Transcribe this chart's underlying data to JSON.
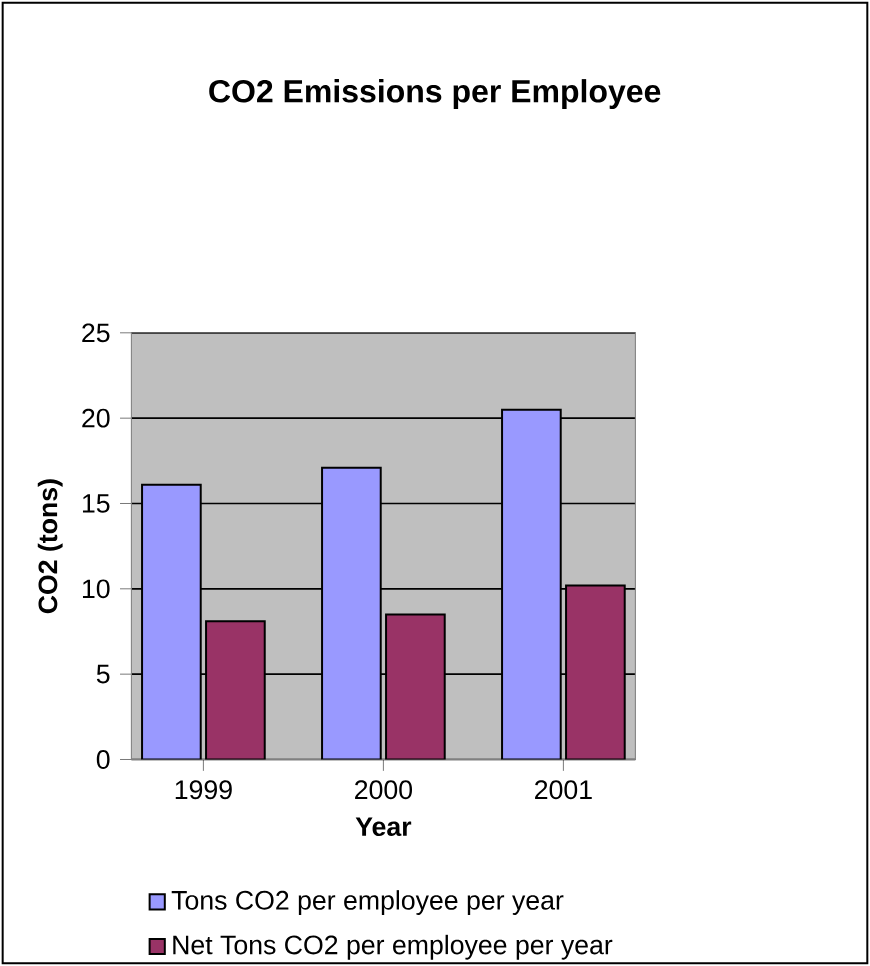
{
  "chart_data": {
    "type": "bar",
    "title": "CO2 Emissions per Employee",
    "xlabel": "Year",
    "ylabel": "CO2 (tons)",
    "categories": [
      "1999",
      "2000",
      "2001"
    ],
    "series": [
      {
        "name": "Tons CO2 per employee per year",
        "color": "#9999ff",
        "values": [
          16.1,
          17.1,
          20.5
        ]
      },
      {
        "name": "Net Tons CO2 per employee per year",
        "color": "#993366",
        "values": [
          8.1,
          8.5,
          10.2
        ]
      }
    ],
    "ylim": [
      0,
      25
    ],
    "yticks": [
      0,
      5,
      10,
      15,
      20,
      25
    ],
    "grid": "y",
    "legend": "bottom"
  }
}
